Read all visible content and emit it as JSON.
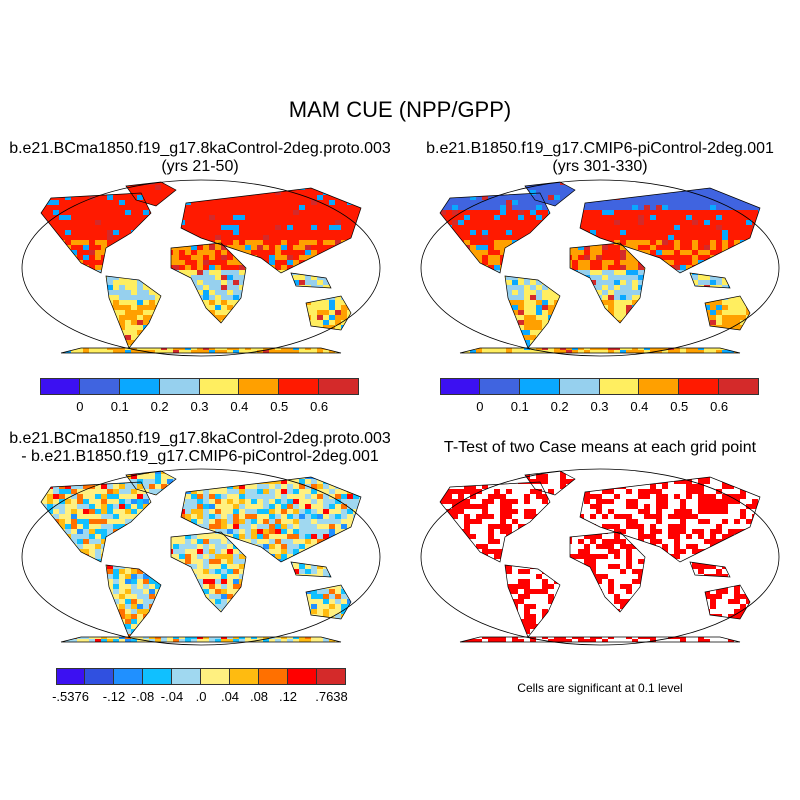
{
  "title": "MAM CUE (NPP/GPP)",
  "panels": [
    {
      "title_line1": "b.e21.BCma1850.f19_g17.8kaControl-2deg.proto.003",
      "title_line2": "(yrs 21-50)"
    },
    {
      "title_line1": "b.e21.B1850.f19_g17.CMIP6-piControl-2deg.001",
      "title_line2": "(yrs 301-330)"
    },
    {
      "title_line1": "b.e21.BCma1850.f19_g17.8kaControl-2deg.proto.003",
      "title_line2": "- b.e21.B1850.f19_g17.CMIP6-piControl-2deg.001"
    },
    {
      "title_line1": "T-Test of two Case means at each grid point",
      "note": "Cells are significant at 0.1 level"
    }
  ],
  "colorbar_main": {
    "labels": [
      "0",
      "0.1",
      "0.2",
      "0.3",
      "0.4",
      "0.5",
      "0.6"
    ],
    "colors": [
      "#3c10f2",
      "#4064e0",
      "#0aa8ff",
      "#96d0ee",
      "#ffee60",
      "#ffa000",
      "#ff1a00",
      "#d42a2a"
    ]
  },
  "colorbar_diff": {
    "labels": [
      "-.5376",
      "",
      "-.12",
      "-.08",
      "-.04",
      ".0",
      ".04",
      ".08",
      ".12",
      "",
      ".7638"
    ],
    "colors": [
      "#3c10f2",
      "#3050e0",
      "#2090ff",
      "#10c0ff",
      "#a0d8f0",
      "#fff080",
      "#ffbb10",
      "#ff7000",
      "#ff0000",
      "#d42a2a"
    ]
  },
  "significance_color": "#ff0000"
}
